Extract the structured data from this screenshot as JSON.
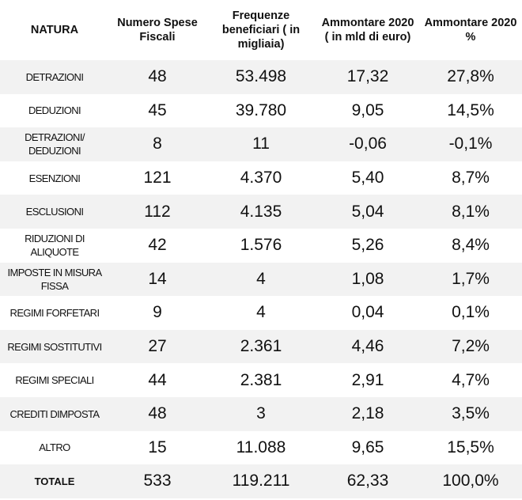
{
  "headers": {
    "natura": "NATURA",
    "numero": "Numero Spese Fiscali",
    "frequenze": "Frequenze beneficiari ( in migliaia)",
    "ammontare": "Ammontare 2020 ( in mld di euro)",
    "ammontare_pct": "Ammontare 2020 %"
  },
  "rows": [
    {
      "natura": "DETRAZIONI",
      "numero": "48",
      "frequenze": "53.498",
      "ammontare": "17,32",
      "pct": "27,8%"
    },
    {
      "natura": "DEDUZIONI",
      "numero": "45",
      "frequenze": "39.780",
      "ammontare": "9,05",
      "pct": "14,5%"
    },
    {
      "natura": "DETRAZIONI/ DEDUZIONI",
      "numero": "8",
      "frequenze": "11",
      "ammontare": "-0,06",
      "pct": "-0,1%"
    },
    {
      "natura": "ESENZIONI",
      "numero": "121",
      "frequenze": "4.370",
      "ammontare": "5,40",
      "pct": "8,7%"
    },
    {
      "natura": "ESCLUSIONI",
      "numero": "112",
      "frequenze": "4.135",
      "ammontare": "5,04",
      "pct": "8,1%"
    },
    {
      "natura": "RIDUZIONI DI ALIQUOTE",
      "numero": "42",
      "frequenze": "1.576",
      "ammontare": "5,26",
      "pct": "8,4%"
    },
    {
      "natura": "IMPOSTE IN MISURA FISSA",
      "numero": "14",
      "frequenze": "4",
      "ammontare": "1,08",
      "pct": "1,7%"
    },
    {
      "natura": "REGIMI FORFETARI",
      "numero": "9",
      "frequenze": "4",
      "ammontare": "0,04",
      "pct": "0,1%"
    },
    {
      "natura": "REGIMI SOSTITUTIVI",
      "numero": "27",
      "frequenze": "2.361",
      "ammontare": "4,46",
      "pct": "7,2%"
    },
    {
      "natura": "REGIMI SPECIALI",
      "numero": "44",
      "frequenze": "2.381",
      "ammontare": "2,91",
      "pct": "4,7%"
    },
    {
      "natura": "CREDITI DIMPOSTA",
      "numero": "48",
      "frequenze": "3",
      "ammontare": "2,18",
      "pct": "3,5%"
    },
    {
      "natura": "ALTRO",
      "numero": "15",
      "frequenze": "11.088",
      "ammontare": "9,65",
      "pct": "15,5%"
    }
  ],
  "total": {
    "natura": "TOTALE",
    "numero": "533",
    "frequenze": "119.211",
    "ammontare": "62,33",
    "pct": "100,0%"
  }
}
